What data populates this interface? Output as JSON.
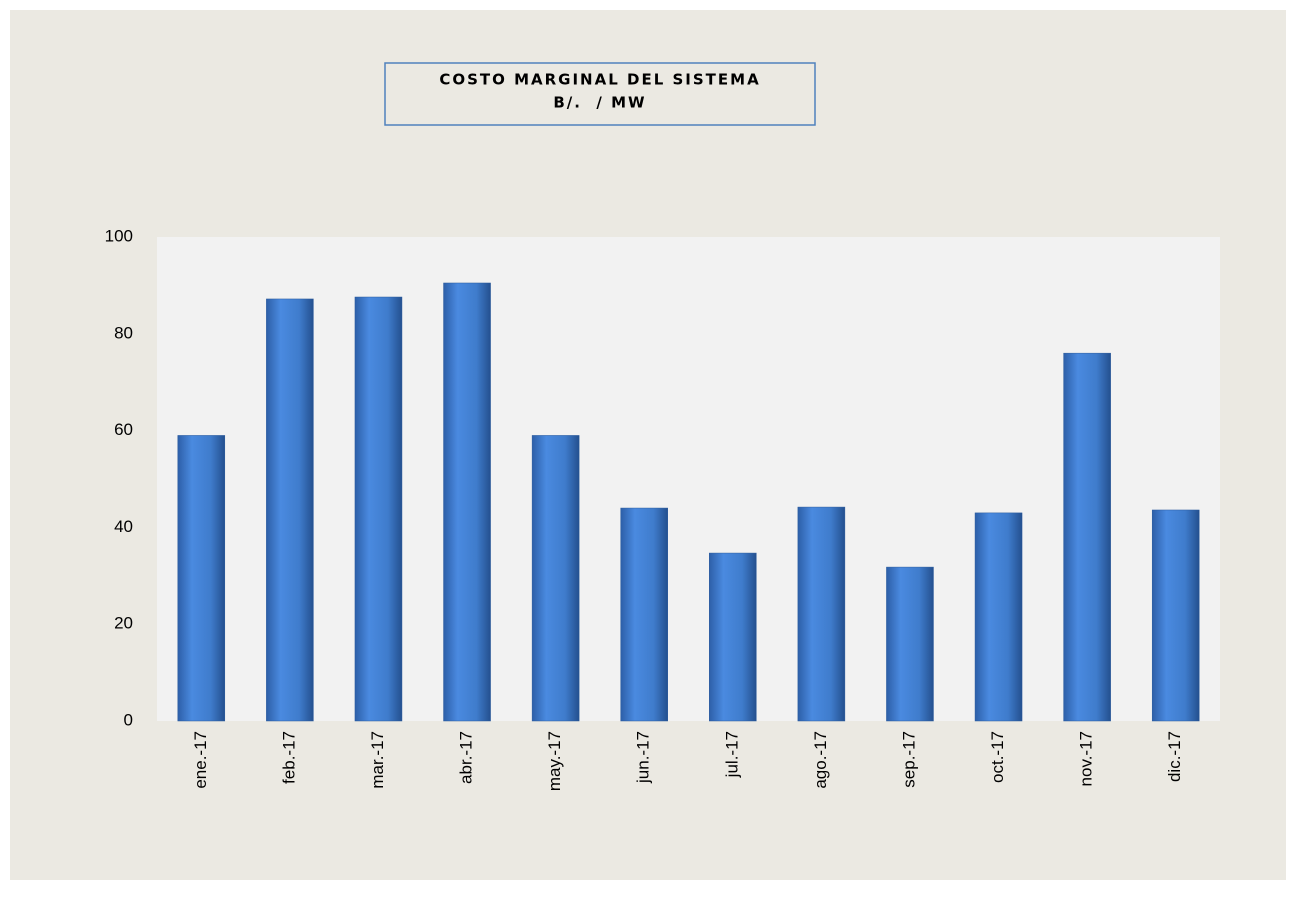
{
  "chart_data": {
    "type": "bar",
    "title": "COSTO MARGINAL DEL SISTEMA",
    "subtitle": "B/.  / MW",
    "categories": [
      "ene.-17",
      "feb.-17",
      "mar.-17",
      "abr.-17",
      "may.-17",
      "jun.-17",
      "jul.-17",
      "ago.-17",
      "sep.-17",
      "oct.-17",
      "nov.-17",
      "dic.-17"
    ],
    "values": [
      59,
      87.2,
      87.6,
      90.5,
      59,
      44,
      34.7,
      44.2,
      31.8,
      43,
      76,
      43.6
    ],
    "color": "#3f7ccc",
    "ylim": [
      0,
      100
    ],
    "yticks": [
      0,
      20,
      40,
      60,
      80,
      100
    ],
    "grid": false
  }
}
